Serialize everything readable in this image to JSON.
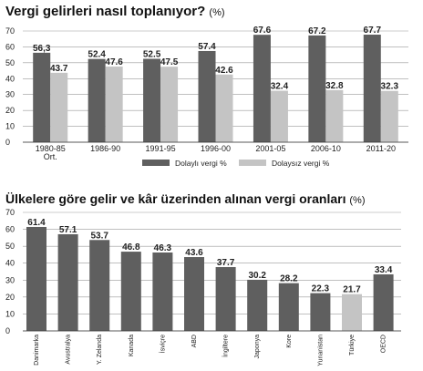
{
  "chart_data": [
    {
      "type": "bar",
      "title": "Vergi gelirleri nasıl toplanıyor?",
      "unit": "(%)",
      "categories": [
        "1980-85 Ort.",
        "1986-90",
        "1991-95",
        "1996-00",
        "2001-05",
        "2006-10",
        "2011-20"
      ],
      "category_lines": [
        [
          "1980-85",
          "Ort."
        ],
        [
          "1986-90"
        ],
        [
          "1991-95"
        ],
        [
          "1996-00"
        ],
        [
          "2001-05"
        ],
        [
          "2006-10"
        ],
        [
          "2011-20"
        ]
      ],
      "series": [
        {
          "name": "Dolaylı vergi %",
          "color": "#5f5f5f",
          "values": [
            56.3,
            52.4,
            52.5,
            57.4,
            67.6,
            67.2,
            67.7
          ],
          "labels": [
            "56,3",
            "52.4",
            "52.5",
            "57.4",
            "67.6",
            "67.2",
            "67.7"
          ]
        },
        {
          "name": "Dolaysız vergi %",
          "color": "#c4c4c4",
          "values": [
            43.7,
            47.6,
            47.5,
            42.6,
            32.4,
            32.8,
            32.3
          ],
          "labels": [
            "43.7",
            "47.6",
            "47.5",
            "42.6",
            "32.4",
            "32.8",
            "32.3"
          ]
        }
      ],
      "ylim": [
        0,
        70
      ],
      "yticks": [
        "0",
        "10",
        "20",
        "30",
        "40",
        "50",
        "60",
        "70"
      ],
      "grid": true,
      "legend": "bottom"
    },
    {
      "type": "bar",
      "title": "Ülkelere göre gelir ve kâr üzerinden alınan vergi oranları",
      "unit": "(%)",
      "categories": [
        "Danimarka",
        "Avustralya",
        "Y. Zelanda",
        "Kanada",
        "İsviçre",
        "ABD",
        "İngiltere",
        "Japonya",
        "Kore",
        "Yunanistan",
        "Türkiye",
        "OECD"
      ],
      "values": [
        61.4,
        57.1,
        53.7,
        46.8,
        46.3,
        43.6,
        37.7,
        30.2,
        28.2,
        22.3,
        21.7,
        33.4
      ],
      "labels": [
        "61.4",
        "57.1",
        "53.7",
        "46.8",
        "46.3",
        "43.6",
        "37.7",
        "30.2",
        "28.2",
        "22.3",
        "21.7",
        "33.4"
      ],
      "colors": [
        "#5f5f5f",
        "#5f5f5f",
        "#5f5f5f",
        "#5f5f5f",
        "#5f5f5f",
        "#5f5f5f",
        "#5f5f5f",
        "#5f5f5f",
        "#5f5f5f",
        "#5f5f5f",
        "#c4c4c4",
        "#5f5f5f"
      ],
      "ylim": [
        0,
        70
      ],
      "yticks": [
        "0",
        "10",
        "20",
        "30",
        "40",
        "50",
        "60",
        "70"
      ],
      "grid": true
    }
  ]
}
